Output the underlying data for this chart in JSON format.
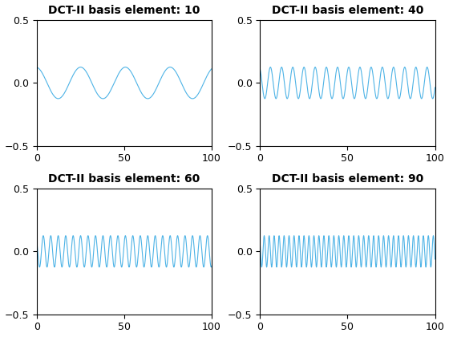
{
  "titles": [
    "DCT-II basis element: 10",
    "DCT-II basis element: 40",
    "DCT-II basis element: 60",
    "DCT-II basis element: 90"
  ],
  "elements": [
    10,
    40,
    60,
    90
  ],
  "N": 128,
  "n_points": 2000,
  "line_color": "#4db3e6",
  "ylim": [
    -0.5,
    0.5
  ],
  "xlim": [
    0,
    100
  ],
  "xticks": [
    0,
    50,
    100
  ],
  "yticks": [
    -0.5,
    0,
    0.5
  ],
  "title_fontsize": 10,
  "background_color": "#ffffff",
  "amplitude": 0.1414
}
